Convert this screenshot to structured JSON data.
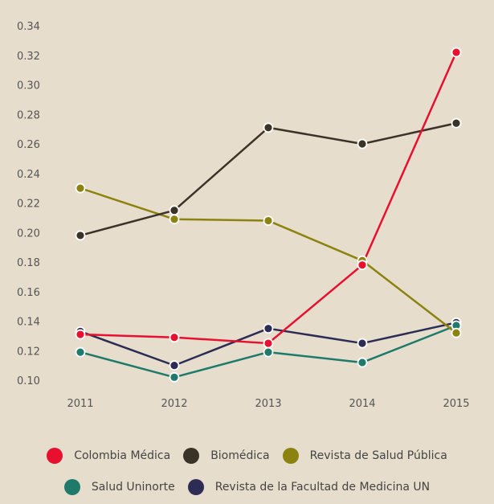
{
  "chart_data": {
    "type": "line",
    "title": "",
    "xlabel": "",
    "ylabel": "",
    "x": [
      "2011",
      "2012",
      "2013",
      "2014",
      "2015"
    ],
    "ylim": [
      0.1,
      0.34
    ],
    "yticks": [
      "0.10",
      "0.12",
      "0.14",
      "0.16",
      "0.18",
      "0.20",
      "0.22",
      "0.24",
      "0.26",
      "0.28",
      "0.30",
      "0.32",
      "0.34"
    ],
    "grid": false,
    "legend_position": "bottom",
    "series": [
      {
        "name": "Colombia Médica",
        "color": "#e8102f",
        "values": [
          0.131,
          0.129,
          0.125,
          0.178,
          0.322
        ]
      },
      {
        "name": "Biomédica",
        "color": "#3b3328",
        "values": [
          0.198,
          0.215,
          0.271,
          0.26,
          0.274
        ]
      },
      {
        "name": "Revista de Salud Pública",
        "color": "#8c8210",
        "values": [
          0.23,
          0.209,
          0.208,
          0.181,
          0.132
        ]
      },
      {
        "name": "Salud Uninorte",
        "color": "#1f7a6a",
        "values": [
          0.119,
          0.102,
          0.119,
          0.112,
          0.137
        ]
      },
      {
        "name": "Revista de la Facultad de Medicina UN",
        "color": "#2c2c55",
        "values": [
          0.133,
          0.11,
          0.135,
          0.125,
          0.139
        ]
      }
    ],
    "legend_rows": [
      [
        0,
        1,
        2
      ],
      [
        3,
        4
      ]
    ]
  }
}
